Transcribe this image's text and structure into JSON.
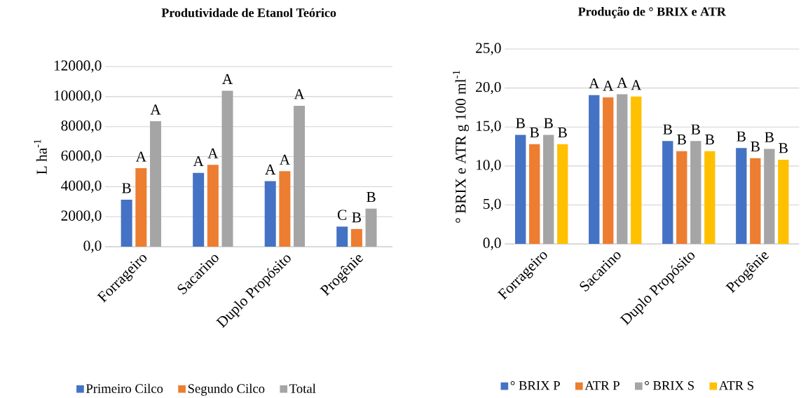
{
  "chart_data": [
    {
      "type": "bar",
      "title": "Produtividade de Etanol Teórico",
      "ylabel": "L ha$^{-1}$",
      "categories": [
        "Forrageiro",
        "Sacarino",
        "Duplo Propósito",
        "Progênie"
      ],
      "series": [
        {
          "name": "Primeiro Cilco",
          "color": "#4472c4",
          "values": [
            3130,
            4920,
            4370,
            1340
          ],
          "value_labels": [
            "B",
            "A",
            "A",
            "C"
          ]
        },
        {
          "name": "Segundo Cilco",
          "color": "#ed7d31",
          "values": [
            5230,
            5450,
            5030,
            1180
          ],
          "value_labels": [
            "A",
            "A",
            "A",
            "B"
          ]
        },
        {
          "name": "Total",
          "color": "#a5a5a5",
          "values": [
            8360,
            10390,
            9390,
            2540
          ],
          "value_labels": [
            "A",
            "A",
            "A",
            "B"
          ]
        }
      ],
      "ylim": [
        0,
        12000
      ],
      "yticks": [
        {
          "value": 0,
          "label": "0,0"
        },
        {
          "value": 2000,
          "label": "2000,0"
        },
        {
          "value": 4000,
          "label": "4000,0"
        },
        {
          "value": 6000,
          "label": "6000,0"
        },
        {
          "value": 8000,
          "label": "8000,0"
        },
        {
          "value": 10000,
          "label": "10000,0"
        },
        {
          "value": 12000,
          "label": "12000,0"
        }
      ],
      "grid": "y",
      "legend": "bottom"
    },
    {
      "type": "bar",
      "title": "Produção de ° BRIX  e ATR",
      "ylabel": "° BRIX  e  ATR g 100 ml$^{-1}$",
      "categories": [
        "Forrageiro",
        "Sacarino",
        "Duplo Propósito",
        "Progênie"
      ],
      "series": [
        {
          "name": "° BRIX P",
          "color": "#4472c4",
          "values": [
            14.0,
            19.1,
            13.2,
            12.3
          ],
          "value_labels": [
            "B",
            "A",
            "B",
            "B"
          ]
        },
        {
          "name": "ATR P",
          "color": "#ed7d31",
          "values": [
            12.8,
            18.8,
            11.9,
            11.0
          ],
          "value_labels": [
            "B",
            "A",
            "B",
            "B"
          ]
        },
        {
          "name": "° BRIX S",
          "color": "#a5a5a5",
          "values": [
            14.0,
            19.2,
            13.2,
            12.2
          ],
          "value_labels": [
            "B",
            "A",
            "B",
            "B"
          ]
        },
        {
          "name": "ATR S",
          "color": "#ffc000",
          "values": [
            12.8,
            18.9,
            11.9,
            10.8
          ],
          "value_labels": [
            "B",
            "A",
            "B",
            "B"
          ]
        }
      ],
      "ylim": [
        0,
        25
      ],
      "yticks": [
        {
          "value": 0,
          "label": "0,0"
        },
        {
          "value": 5,
          "label": "5,0"
        },
        {
          "value": 10,
          "label": "10,0"
        },
        {
          "value": 15,
          "label": "15,0"
        },
        {
          "value": 20,
          "label": "20,0"
        },
        {
          "value": 25,
          "label": "25,0"
        }
      ],
      "grid": "y",
      "legend": "bottom"
    }
  ]
}
